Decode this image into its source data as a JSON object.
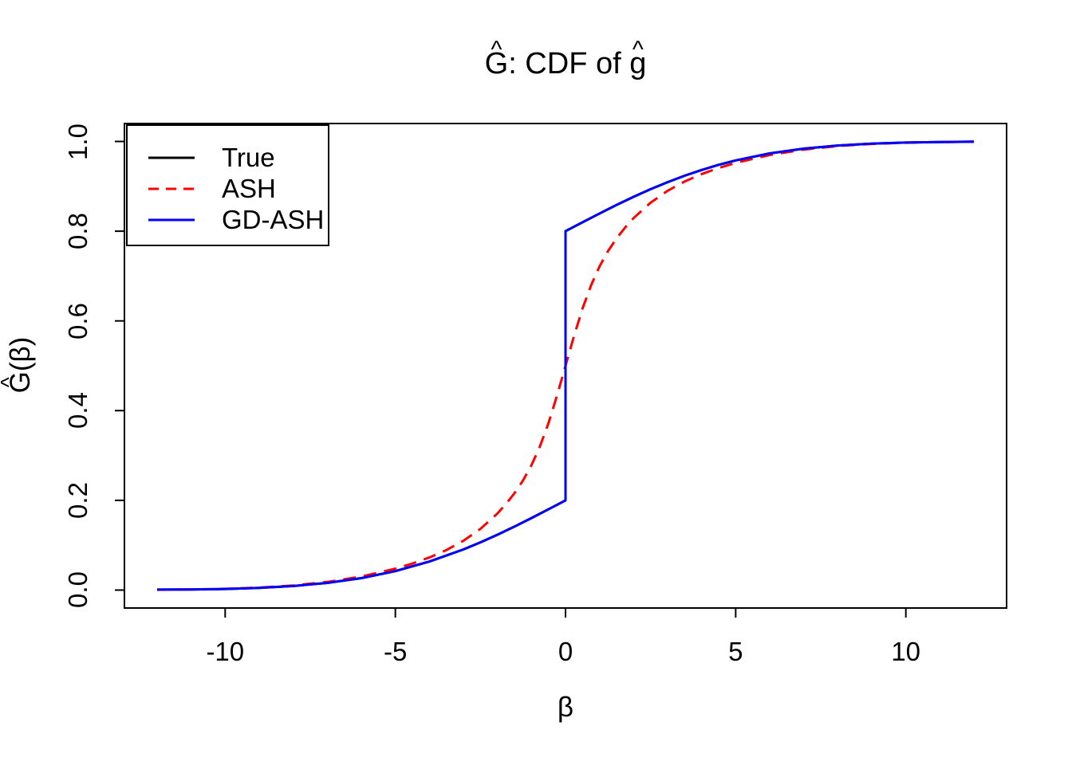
{
  "title": {
    "hat": "^",
    "g_upper": "G",
    "separator": ": CDF of ",
    "g_lower": "g"
  },
  "axes": {
    "x": {
      "label": "β",
      "ticks": [
        "-10",
        "-5",
        "0",
        "5",
        "10"
      ],
      "tick_values": [
        -10,
        -5,
        0,
        5,
        10
      ]
    },
    "y": {
      "hat": "^",
      "label_g": "G",
      "label_rest": "(β)",
      "ticks": [
        "0.0",
        "0.2",
        "0.4",
        "0.6",
        "0.8",
        "1.0"
      ],
      "tick_values": [
        0,
        0.2,
        0.4,
        0.6,
        0.8,
        1.0
      ]
    }
  },
  "legend": {
    "items": [
      {
        "label": "True",
        "color": "#000000",
        "dash": "solid"
      },
      {
        "label": "ASH",
        "color": "#FF0000",
        "dash": "dashed"
      },
      {
        "label": "GD-ASH",
        "color": "#0000FF",
        "dash": "solid"
      }
    ]
  },
  "chart_data": {
    "type": "line",
    "title": "Ĝ: CDF of ĝ",
    "xlabel": "β",
    "ylabel": "Ĝ(β)",
    "xlim": [
      -12,
      12
    ],
    "ylim": [
      0,
      1
    ],
    "grid": false,
    "legend_position": "topleft",
    "series": [
      {
        "name": "True",
        "color": "#000000",
        "style": "solid",
        "x": [
          -12,
          -11,
          -10,
          -9,
          -8,
          -7,
          -6,
          -5,
          -4,
          -3,
          -2.5,
          -2,
          -1.5,
          -1,
          -0.5,
          0,
          0,
          0.5,
          1,
          1.5,
          2,
          2.5,
          3,
          3.5,
          4,
          4.5,
          5,
          6,
          7,
          8,
          9,
          10,
          11,
          12
        ],
        "y": [
          0.001,
          0.0012,
          0.0025,
          0.0049,
          0.0091,
          0.016,
          0.0267,
          0.0422,
          0.0635,
          0.0906,
          0.1064,
          0.1234,
          0.1415,
          0.1605,
          0.1801,
          0.2,
          0.8,
          0.8199,
          0.8395,
          0.8585,
          0.8766,
          0.8936,
          0.9093,
          0.9236,
          0.9365,
          0.9479,
          0.9577,
          0.9733,
          0.984,
          0.9909,
          0.9951,
          0.9975,
          0.9988,
          0.9995
        ]
      },
      {
        "name": "ASH",
        "color": "#FF0000",
        "style": "dashed",
        "x": [
          -12,
          -11,
          -10,
          -9,
          -8,
          -7,
          -6,
          -5,
          -4.5,
          -4,
          -3.5,
          -3,
          -2.5,
          -2,
          -1.75,
          -1.5,
          -1.25,
          -1,
          -0.75,
          -0.5,
          -0.25,
          0,
          0.25,
          0.5,
          0.75,
          1,
          1.25,
          1.5,
          1.75,
          2,
          2.5,
          3,
          3.5,
          4,
          4.5,
          5,
          6,
          7,
          8,
          9,
          10,
          11,
          12
        ],
        "y": [
          0.0006,
          0.0013,
          0.0028,
          0.0055,
          0.0102,
          0.018,
          0.0301,
          0.0477,
          0.0591,
          0.0727,
          0.0893,
          0.1099,
          0.1364,
          0.1708,
          0.1918,
          0.216,
          0.2443,
          0.2784,
          0.3207,
          0.3725,
          0.4333,
          0.5,
          0.5667,
          0.6275,
          0.6793,
          0.7216,
          0.7557,
          0.784,
          0.8082,
          0.8292,
          0.8636,
          0.8901,
          0.9107,
          0.9273,
          0.9409,
          0.9523,
          0.9699,
          0.982,
          0.9898,
          0.9945,
          0.9972,
          0.9987,
          0.9994
        ]
      },
      {
        "name": "GD-ASH",
        "color": "#0000FF",
        "style": "solid",
        "x": [
          -12,
          -11,
          -10,
          -9,
          -8,
          -7,
          -6,
          -5,
          -4,
          -3,
          -2.5,
          -2,
          -1.5,
          -1,
          -0.5,
          0,
          0,
          0.5,
          1,
          1.5,
          2,
          2.5,
          3,
          3.5,
          4,
          4.5,
          5,
          6,
          7,
          8,
          9,
          10,
          11,
          12
        ],
        "y": [
          0.001,
          0.0012,
          0.0025,
          0.0049,
          0.0091,
          0.016,
          0.0267,
          0.0422,
          0.0635,
          0.0906,
          0.1064,
          0.1234,
          0.1415,
          0.1605,
          0.1801,
          0.2,
          0.8,
          0.8199,
          0.8395,
          0.8585,
          0.8766,
          0.8936,
          0.9093,
          0.9236,
          0.9365,
          0.9479,
          0.9577,
          0.9733,
          0.984,
          0.9909,
          0.9951,
          0.9975,
          0.9988,
          0.9995
        ]
      }
    ]
  }
}
